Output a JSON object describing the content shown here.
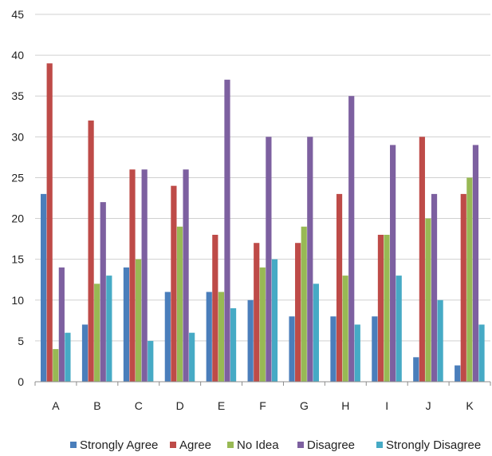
{
  "chart_data": {
    "type": "bar",
    "title": "",
    "xlabel": "",
    "ylabel": "",
    "categories": [
      "A",
      "B",
      "C",
      "D",
      "E",
      "F",
      "G",
      "H",
      "I",
      "J",
      "K"
    ],
    "ylim": [
      0,
      45
    ],
    "yticks": [
      0,
      5,
      10,
      15,
      20,
      25,
      30,
      35,
      40,
      45
    ],
    "grid": true,
    "legend_position": "bottom",
    "series": [
      {
        "name": "Strongly Agree",
        "color": "#4a7ebb",
        "values": [
          23,
          7,
          14,
          11,
          11,
          10,
          8,
          8,
          8,
          3,
          2
        ]
      },
      {
        "name": "Agree",
        "color": "#be4b48",
        "values": [
          39,
          32,
          26,
          24,
          18,
          17,
          17,
          23,
          18,
          30,
          23
        ]
      },
      {
        "name": "No Idea",
        "color": "#98b954",
        "values": [
          4,
          12,
          15,
          19,
          11,
          14,
          19,
          13,
          18,
          20,
          25
        ]
      },
      {
        "name": "Disagree",
        "color": "#7d60a0",
        "values": [
          14,
          22,
          26,
          26,
          37,
          30,
          30,
          35,
          29,
          23,
          29
        ]
      },
      {
        "name": "Strongly Disagree",
        "color": "#46aac5",
        "values": [
          6,
          13,
          5,
          6,
          9,
          15,
          12,
          7,
          13,
          10,
          7
        ]
      }
    ]
  }
}
